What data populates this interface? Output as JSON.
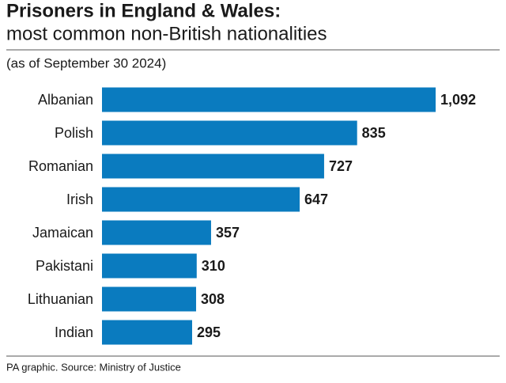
{
  "chart_data": {
    "type": "bar",
    "orientation": "horizontal",
    "title": "Prisoners in England & Wales:",
    "subtitle": "most common non-British nationalities",
    "note": "(as of September 30 2024)",
    "source": "PA graphic. Source: Ministry of Justice",
    "categories": [
      "Albanian",
      "Polish",
      "Romanian",
      "Irish",
      "Jamaican",
      "Pakistani",
      "Lithuanian",
      "Indian"
    ],
    "values": [
      1092,
      835,
      727,
      647,
      357,
      310,
      308,
      295
    ],
    "value_labels": [
      "1,092",
      "835",
      "727",
      "647",
      "357",
      "310",
      "308",
      "295"
    ],
    "color": "#0a7bbf"
  }
}
